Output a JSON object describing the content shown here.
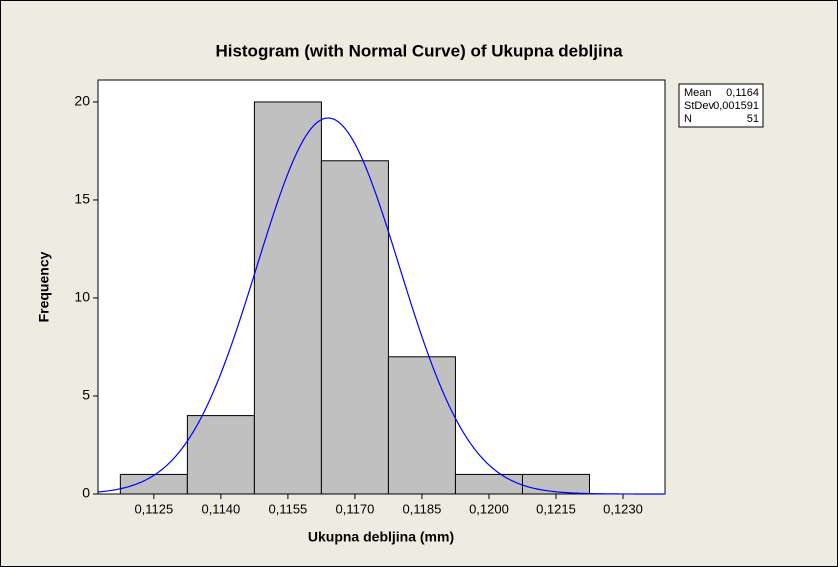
{
  "chart_data": {
    "type": "histogram",
    "title": "Histogram (with Normal Curve) of Ukupna debljina",
    "x_label": "Ukupna debljina (mm)",
    "y_label": "Frequency",
    "bins": [
      0.11175,
      0.11325,
      0.11475,
      0.11625,
      0.11775,
      0.11925,
      0.12075,
      0.12225,
      0.12375
    ],
    "counts": [
      1,
      4,
      20,
      17,
      7,
      1,
      1,
      0
    ],
    "color": "#c0c0c0",
    "curve_color": "#0000ff",
    "xlim": [
      0.11125,
      0.12394
    ],
    "xticks": [
      {
        "value": 0.1125,
        "label": "0,1125"
      },
      {
        "value": 0.114,
        "label": "0,1140"
      },
      {
        "value": 0.1155,
        "label": "0,1155"
      },
      {
        "value": 0.117,
        "label": "0,1170"
      },
      {
        "value": 0.1185,
        "label": "0,1185"
      },
      {
        "value": 0.12,
        "label": "0,1200"
      },
      {
        "value": 0.1215,
        "label": "0,1215"
      },
      {
        "value": 0.123,
        "label": "0,1230"
      }
    ],
    "ylim": [
      0,
      21.12
    ],
    "yticks": [
      0,
      5,
      10,
      15,
      20
    ],
    "stats": [
      {
        "name": "Mean",
        "value": 0.1164,
        "label": "0,1164"
      },
      {
        "name": "StDev",
        "value": 0.001591,
        "label": "0,001591"
      },
      {
        "name": "N",
        "value": 51
      }
    ]
  }
}
